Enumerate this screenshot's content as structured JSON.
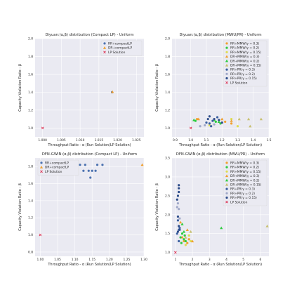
{
  "colors": {
    "plot_bg": "#eaeaf2",
    "grid": "#ffffff",
    "legend_bg": "#eaeaf2",
    "legend_border": "#d8d8d8",
    "rr": "#4c72b0",
    "dr": "#f0a030",
    "lp": "#dd3050",
    "mmw_03": "#f0a030",
    "mmw_02": "#2ecc40",
    "mmw_015": "#dddd50",
    "dmmw_03": "#f0a030",
    "dmmw_02": "#2ecc40",
    "dmmw_015": "#c8c070",
    "prv_03": "#3a5fa0",
    "prv_02": "#a0a8c8",
    "prv_015": "#2e4d8a"
  },
  "chart_data": [
    {
      "type": "scatter",
      "title": "Diyuan:(α,β) distribution (Compact LP) - Uniform",
      "xlabel": "Throughput Ratio - α (Run Solution/LP Solution)",
      "ylabel": "Capacity Violation Ratio - β",
      "xlim": [
        0.998,
        1.027
      ],
      "ylim": [
        0.9,
        2.0
      ],
      "xticks": [
        "1.000",
        "1.005",
        "1.010",
        "1.015",
        "1.020",
        "1.025"
      ],
      "xtick_values": [
        1.0,
        1.005,
        1.01,
        1.015,
        1.02,
        1.025
      ],
      "yticks": [
        "1.0",
        "1.2",
        "1.4",
        "1.6",
        "1.8",
        "2.0"
      ],
      "ytick_values": [
        1.0,
        1.2,
        1.4,
        1.6,
        1.8,
        2.0
      ],
      "legend_position": "top-right",
      "series": [
        {
          "name": "RR+compactLP",
          "marker": "circle",
          "color": "rr",
          "points": [
            [
              1.0185,
              1.4
            ]
          ]
        },
        {
          "name": "DR+compactLP",
          "marker": "triangle",
          "color": "dr",
          "points": [
            [
              1.0186,
              1.405
            ]
          ]
        },
        {
          "name": "LP Solution",
          "marker": "x",
          "color": "lp",
          "points": [
            [
              1.0,
              1.0
            ]
          ]
        }
      ]
    },
    {
      "type": "scatter",
      "title": "Diyuan:(α,β) distribution (MWU/PR) - Uniform",
      "xlabel": "Throughput Ratio - α (Run Solution/LP Solution)",
      "ylabel": "Capacity Violation Ratio - β",
      "xlim": [
        0.88,
        1.5
      ],
      "ylim": [
        0.9,
        2.0
      ],
      "xticks": [
        "0.9",
        "1.0",
        "1.1",
        "1.2",
        "1.3",
        "1.4",
        "1.5"
      ],
      "xtick_values": [
        0.9,
        1.0,
        1.1,
        1.2,
        1.3,
        1.4,
        1.5
      ],
      "yticks": [
        "1.0",
        "1.2",
        "1.4",
        "1.6",
        "1.8",
        "2.0"
      ],
      "ytick_values": [
        1.0,
        1.2,
        1.4,
        1.6,
        1.8,
        2.0
      ],
      "legend_position": "top-right",
      "series": [
        {
          "name": "RR+MMW(γ = 0.3)",
          "marker": "circle",
          "color": "mmw_03",
          "points": [
            [
              1.22,
              1.07
            ],
            [
              1.26,
              1.05
            ],
            [
              1.04,
              1.1
            ]
          ]
        },
        {
          "name": "RR+MMW(γ = 0.2)",
          "marker": "circle",
          "color": "mmw_02",
          "points": [
            [
              1.03,
              1.08
            ],
            [
              1.16,
              1.07
            ],
            [
              1.19,
              1.05
            ]
          ]
        },
        {
          "name": "RR+MMW(γ = 0.15)",
          "marker": "circle",
          "color": "mmw_015",
          "points": [
            [
              1.26,
              1.1
            ],
            [
              1.3,
              1.02
            ],
            [
              1.12,
              1.03
            ]
          ]
        },
        {
          "name": "DR+MMW(γ = 0.3)",
          "marker": "triangle",
          "color": "dmmw_03",
          "points": [
            [
              1.26,
              1.08
            ],
            [
              1.05,
              1.1
            ],
            [
              1.2,
              1.1
            ]
          ]
        },
        {
          "name": "DR+MMW(γ = 0.2)",
          "marker": "triangle",
          "color": "dmmw_02",
          "points": [
            [
              1.15,
              1.09
            ],
            [
              1.18,
              1.07
            ],
            [
              1.02,
              1.09
            ]
          ]
        },
        {
          "name": "DR+MMW(γ = 0.15)",
          "marker": "triangle",
          "color": "dmmw_015",
          "points": [
            [
              1.31,
              1.1
            ],
            [
              1.37,
              1.1
            ],
            [
              1.45,
              1.1
            ],
            [
              1.38,
              1.02
            ]
          ]
        },
        {
          "name": "RR+PR(γ = 0.3)",
          "marker": "circle",
          "color": "prv_03",
          "points": [
            [
              1.12,
              1.05
            ],
            [
              1.17,
              1.12
            ],
            [
              1.14,
              1.08
            ],
            [
              1.13,
              1.02
            ],
            [
              1.1,
              1.06
            ]
          ]
        },
        {
          "name": "RR+PR(γ = 0.2)",
          "marker": "circle",
          "color": "prv_02",
          "points": [
            [
              1.06,
              1.02
            ],
            [
              1.09,
              1.03
            ],
            [
              1.15,
              1.04
            ]
          ]
        },
        {
          "name": "RR+PR(γ = 0.15)",
          "marker": "circle",
          "color": "prv_015",
          "points": [
            [
              1.11,
              1.1
            ],
            [
              1.15,
              1.1
            ],
            [
              1.18,
              1.09
            ],
            [
              1.12,
              1.13
            ],
            [
              1.2,
              1.06
            ]
          ]
        },
        {
          "name": "LP Solution",
          "marker": "x",
          "color": "lp",
          "points": [
            [
              1.0,
              1.0
            ]
          ]
        }
      ]
    },
    {
      "type": "scatter",
      "title": "DFN-GWIN:(α,β) distribution (Compact LP) - Uniform",
      "xlabel": "Throughput Ratio - α (Run Solution/LP Solution)",
      "ylabel": "Capacity Violation Ratio - β",
      "xlim": [
        0.985,
        1.3
      ],
      "ylim": [
        0.75,
        1.9
      ],
      "xticks": [
        "1.00",
        "1.05",
        "1.10",
        "1.15",
        "1.20",
        "1.25",
        "1.30"
      ],
      "xtick_values": [
        1.0,
        1.05,
        1.1,
        1.15,
        1.2,
        1.25,
        1.3
      ],
      "yticks": [
        "0.8",
        "1.0",
        "1.2",
        "1.4",
        "1.6",
        "1.8"
      ],
      "ytick_values": [
        0.8,
        1.0,
        1.2,
        1.4,
        1.6,
        1.8
      ],
      "legend_position": "top-left",
      "series": [
        {
          "name": "RR+compactLP",
          "marker": "circle",
          "color": "rr",
          "points": [
            [
              1.1,
              1.75
            ],
            [
              1.115,
              1.82
            ],
            [
              1.125,
              1.75
            ],
            [
              1.13,
              1.82
            ],
            [
              1.14,
              1.75
            ],
            [
              1.145,
              1.67
            ],
            [
              1.15,
              1.75
            ],
            [
              1.16,
              1.75
            ],
            [
              1.165,
              1.82
            ],
            [
              1.18,
              1.82
            ]
          ]
        },
        {
          "name": "DR+compactLP",
          "marker": "triangle",
          "color": "dr",
          "points": [
            [
              1.295,
              1.82
            ]
          ]
        },
        {
          "name": "LP Solution",
          "marker": "x",
          "color": "lp",
          "points": [
            [
              1.0,
              1.0
            ]
          ]
        }
      ]
    },
    {
      "type": "scatter",
      "title": "DFN-GWIN:(α,β) distribution (MWU/PR) - Uniform",
      "xlabel": "Throughput Ratio - α (Run Solution/LP Solution)",
      "ylabel": "Capacity Violation Ratio - β",
      "xlim": [
        0.8,
        6.5
      ],
      "ylim": [
        0.9,
        3.5
      ],
      "xticks": [
        "1",
        "2",
        "3",
        "4",
        "5",
        "6"
      ],
      "xtick_values": [
        1,
        2,
        3,
        4,
        5,
        6
      ],
      "yticks": [
        "1.0",
        "1.5",
        "2.0",
        "2.5",
        "3.0",
        "3.5"
      ],
      "ytick_values": [
        1.0,
        1.5,
        2.0,
        2.5,
        3.0,
        3.5
      ],
      "legend_position": "top-right",
      "series": [
        {
          "name": "RR+MMW(γ = 0.3)",
          "marker": "circle",
          "color": "mmw_03",
          "points": [
            [
              1.5,
              1.3
            ],
            [
              1.7,
              1.25
            ],
            [
              1.4,
              1.4
            ],
            [
              1.8,
              1.35
            ]
          ]
        },
        {
          "name": "RR+MMW(γ = 0.2)",
          "marker": "circle",
          "color": "mmw_02",
          "points": [
            [
              1.3,
              1.4
            ],
            [
              1.5,
              1.35
            ],
            [
              1.6,
              1.3
            ],
            [
              1.4,
              1.5
            ],
            [
              1.35,
              1.25
            ],
            [
              1.55,
              1.45
            ]
          ]
        },
        {
          "name": "RR+MMW(γ = 0.15)",
          "marker": "circle",
          "color": "mmw_015",
          "points": [
            [
              1.8,
              1.45
            ],
            [
              1.6,
              1.2
            ],
            [
              1.9,
              1.3
            ]
          ]
        },
        {
          "name": "DR+MMW(γ = 0.3)",
          "marker": "triangle",
          "color": "dmmw_03",
          "points": [
            [
              1.7,
              1.6
            ],
            [
              2.0,
              1.3
            ],
            [
              1.3,
              1.8
            ]
          ]
        },
        {
          "name": "DR+MMW(γ = 0.2)",
          "marker": "triangle",
          "color": "dmmw_02",
          "points": [
            [
              3.7,
              1.65
            ],
            [
              1.4,
              1.75
            ],
            [
              1.5,
              1.55
            ]
          ]
        },
        {
          "name": "DR+MMW(γ = 0.15)",
          "marker": "triangle",
          "color": "dmmw_015",
          "points": [
            [
              6.4,
              1.7
            ],
            [
              1.9,
              1.55
            ],
            [
              1.6,
              1.4
            ]
          ]
        },
        {
          "name": "RR+PR(γ = 0.3)",
          "marker": "circle",
          "color": "prv_03",
          "points": [
            [
              1.2,
              1.6
            ],
            [
              1.15,
              1.85
            ],
            [
              1.25,
              1.65
            ],
            [
              1.1,
              1.5
            ],
            [
              1.2,
              1.3
            ]
          ]
        },
        {
          "name": "RR+PR(γ = 0.2)",
          "marker": "circle",
          "color": "prv_02",
          "points": [
            [
              1.15,
              2.3
            ],
            [
              1.1,
              2.2
            ],
            [
              1.2,
              2.15
            ],
            [
              1.25,
              1.9
            ]
          ]
        },
        {
          "name": "RR+PR(γ = 0.15)",
          "marker": "circle",
          "color": "prv_015",
          "points": [
            [
              1.2,
              2.78
            ],
            [
              1.2,
              2.7
            ],
            [
              1.2,
              2.6
            ],
            [
              1.15,
              2.5
            ],
            [
              1.1,
              2.4
            ],
            [
              1.15,
              1.95
            ],
            [
              1.2,
              1.7
            ],
            [
              1.25,
              1.6
            ],
            [
              1.15,
              1.55
            ]
          ]
        },
        {
          "name": "LP Solution",
          "marker": "x",
          "color": "lp",
          "points": [
            [
              1.0,
              1.0
            ]
          ]
        }
      ]
    }
  ]
}
